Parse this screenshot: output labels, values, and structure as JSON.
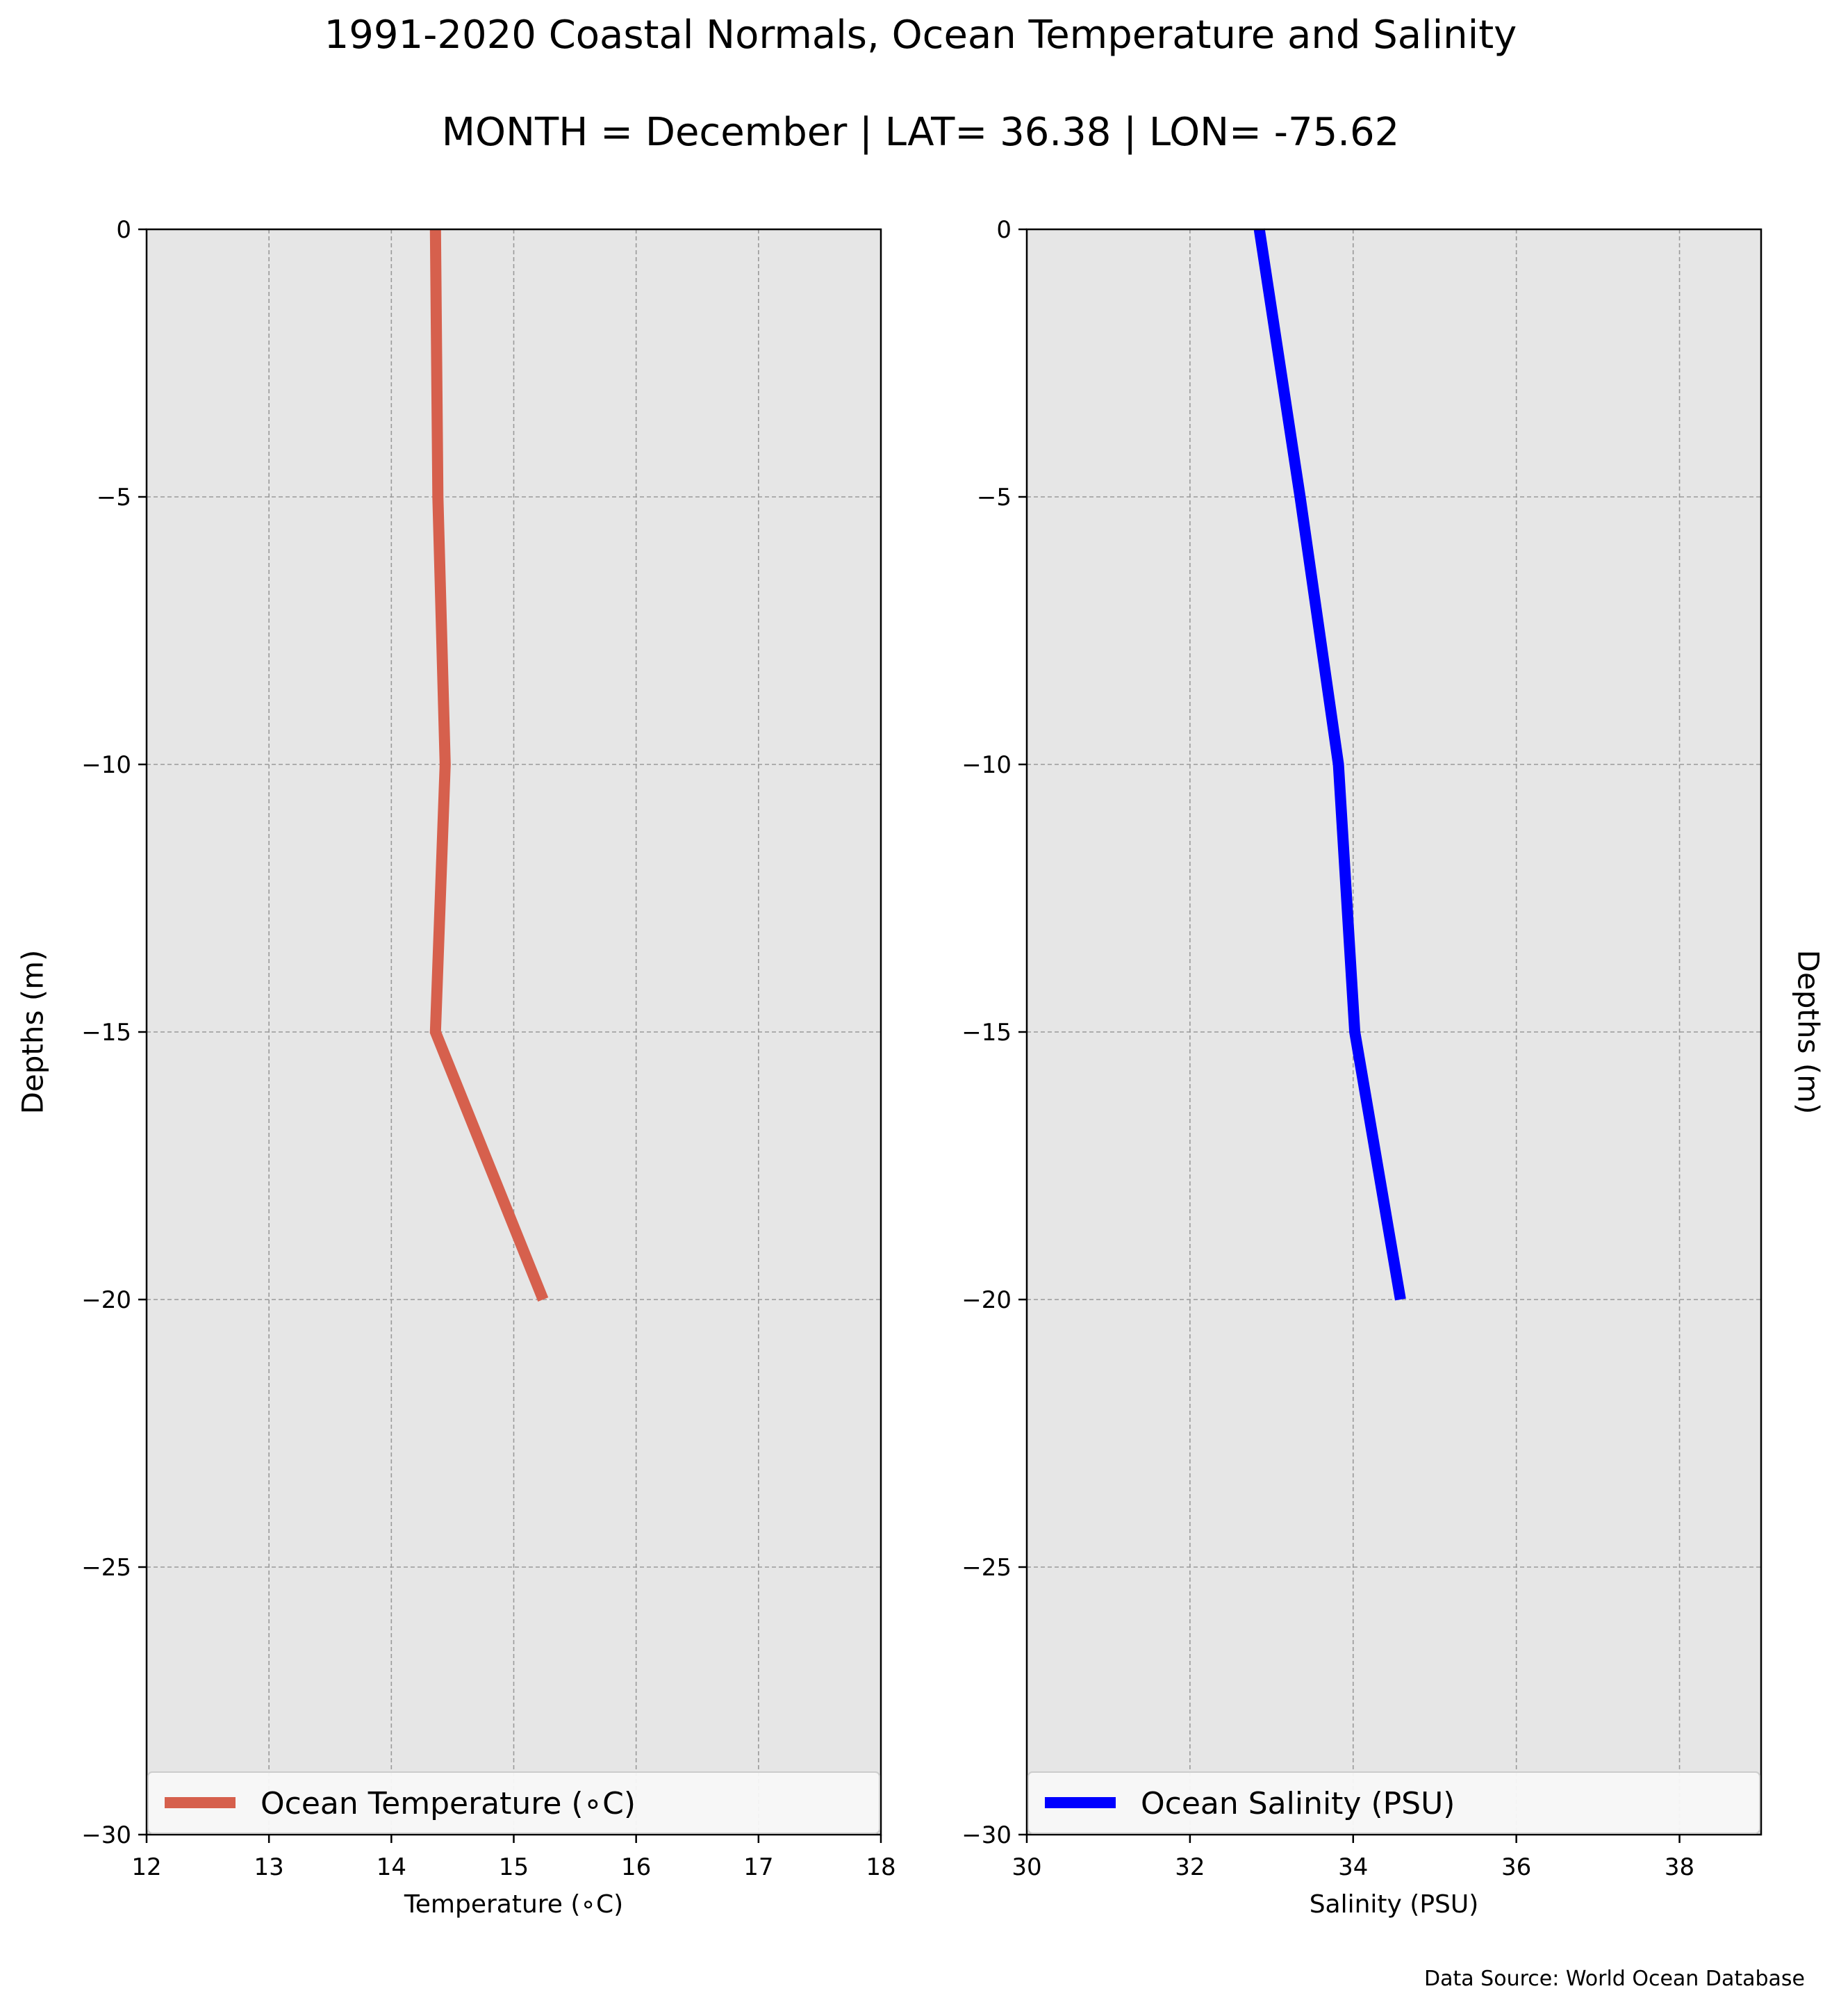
{
  "title": "1991-2020 Coastal Normals, Ocean Temperature and Salinity",
  "subtitle": "MONTH = December | LAT= 36.38 | LON= -75.62",
  "source": "Data Source: World Ocean Database",
  "colors": {
    "temperature": "#d6604d",
    "salinity": "#0000ff",
    "panel_bg": "#e6e6e6",
    "grid": "#9a9a9a"
  },
  "chart_data": [
    {
      "type": "line",
      "xlabel": "Temperature ($^\\circ$C)",
      "xlabel_display": "Temperature (∘C)",
      "ylabel": "Depths (m)",
      "xlim": [
        12,
        18
      ],
      "ylim": [
        -30,
        0
      ],
      "xticks": [
        "12",
        "13",
        "14",
        "15",
        "16",
        "17",
        "18"
      ],
      "yticks": [
        "0",
        "−5",
        "−10",
        "−15",
        "−20",
        "−25",
        "−30"
      ],
      "grid": true,
      "legend": "lower center",
      "series": [
        {
          "name": "Ocean Temperature (∘C)",
          "x": [
            14.36,
            14.38,
            14.44,
            14.36,
            15.24
          ],
          "y": [
            0,
            -5,
            -10,
            -15,
            -20
          ]
        }
      ]
    },
    {
      "type": "line",
      "xlabel": "Salinity (PSU)",
      "ylabel": "Depths (m)",
      "xlim": [
        30,
        39
      ],
      "ylim": [
        -30,
        0
      ],
      "xticks": [
        "30",
        "32",
        "34",
        "36",
        "38"
      ],
      "yticks": [
        "0",
        "−5",
        "−10",
        "−15",
        "−20",
        "−25",
        "−30"
      ],
      "grid": true,
      "legend": "lower center",
      "series": [
        {
          "name": "Ocean Salinity (PSU)",
          "x": [
            32.85,
            33.35,
            33.82,
            34.02,
            34.58
          ],
          "y": [
            0,
            -5,
            -10,
            -15,
            -20
          ]
        }
      ]
    }
  ]
}
